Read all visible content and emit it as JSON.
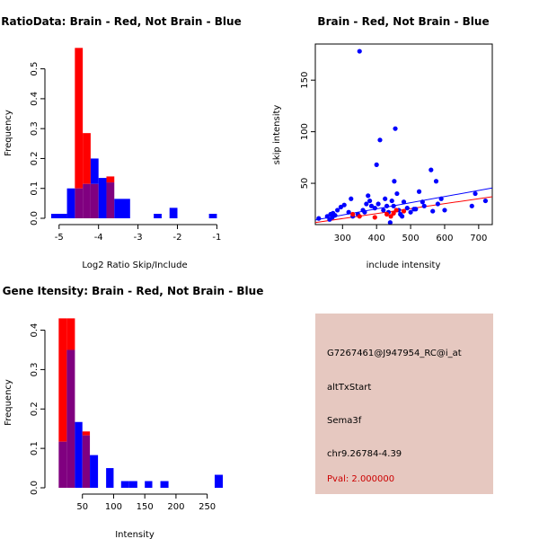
{
  "chart_data": [
    {
      "type": "histogram",
      "title": "RatioData: Brain - Red, Not Brain - Blue",
      "xlabel": "Log2 Ratio Skip/Include",
      "ylabel": "Frequency",
      "xlim": [
        -5.2,
        -0.85
      ],
      "ylim": [
        0,
        0.58
      ],
      "xticks": [
        -5,
        -4,
        -3,
        -2,
        -1
      ],
      "yticks": [
        0,
        0.1,
        0.2,
        0.3,
        0.4,
        0.5
      ],
      "xtick_labels": [
        "-5",
        "-4",
        "-3",
        "-2",
        "-1"
      ],
      "ytick_labels": [
        "0.0",
        "0.1",
        "0.2",
        "0.3",
        "0.4",
        "0.5"
      ],
      "series": [
        {
          "name": "Brain",
          "color": "#ff0000",
          "bins": [
            [
              -4.6,
              -4.4,
              0.57
            ],
            [
              -4.4,
              -4.2,
              0.285
            ],
            [
              -4.2,
              -4.0,
              0.115
            ],
            [
              -3.8,
              -3.6,
              0.14
            ]
          ]
        },
        {
          "name": "Not Brain",
          "color": "#0000ff",
          "bins": [
            [
              -5.2,
              -4.8,
              0.015
            ],
            [
              -4.8,
              -4.6,
              0.1
            ],
            [
              -4.6,
              -4.4,
              0.1
            ],
            [
              -4.4,
              -4.2,
              0.115
            ],
            [
              -4.2,
              -4.0,
              0.2
            ],
            [
              -4.0,
              -3.8,
              0.135
            ],
            [
              -3.8,
              -3.6,
              0.12
            ],
            [
              -3.6,
              -3.2,
              0.065
            ],
            [
              -2.6,
              -2.4,
              0.015
            ],
            [
              -2.2,
              -2.0,
              0.035
            ],
            [
              -1.2,
              -1.0,
              0.015
            ]
          ]
        }
      ]
    },
    {
      "type": "scatter",
      "title": "Brain - Red, Not Brain - Blue",
      "xlabel": "include intensity",
      "ylabel": "skip intensity",
      "xlim": [
        220,
        740
      ],
      "ylim": [
        10,
        185
      ],
      "xticks": [
        300,
        400,
        500,
        600,
        700
      ],
      "yticks": [
        50,
        100,
        150
      ],
      "xtick_labels": [
        "300",
        "400",
        "500",
        "600",
        "700"
      ],
      "ytick_labels": [
        "50",
        "100",
        "150"
      ],
      "series": [
        {
          "name": "Not Brain",
          "color": "#0000ff",
          "points": [
            [
              230,
              16
            ],
            [
              255,
              18
            ],
            [
              262,
              15
            ],
            [
              265,
              20
            ],
            [
              270,
              17
            ],
            [
              272,
              21
            ],
            [
              278,
              19
            ],
            [
              285,
              24
            ],
            [
              295,
              27
            ],
            [
              305,
              29
            ],
            [
              318,
              22
            ],
            [
              325,
              35
            ],
            [
              330,
              18
            ],
            [
              345,
              20
            ],
            [
              350,
              178
            ],
            [
              360,
              24
            ],
            [
              365,
              22
            ],
            [
              370,
              30
            ],
            [
              375,
              38
            ],
            [
              380,
              33
            ],
            [
              385,
              28
            ],
            [
              395,
              26
            ],
            [
              400,
              68
            ],
            [
              405,
              30
            ],
            [
              410,
              92
            ],
            [
              420,
              24
            ],
            [
              425,
              35
            ],
            [
              430,
              28
            ],
            [
              435,
              22
            ],
            [
              440,
              12
            ],
            [
              445,
              33
            ],
            [
              450,
              28
            ],
            [
              452,
              52
            ],
            [
              455,
              103
            ],
            [
              460,
              40
            ],
            [
              465,
              24
            ],
            [
              470,
              20
            ],
            [
              475,
              18
            ],
            [
              480,
              32
            ],
            [
              490,
              26
            ],
            [
              500,
              22
            ],
            [
              510,
              25
            ],
            [
              515,
              25
            ],
            [
              525,
              42
            ],
            [
              535,
              32
            ],
            [
              540,
              28
            ],
            [
              560,
              63
            ],
            [
              565,
              23
            ],
            [
              575,
              52
            ],
            [
              580,
              30
            ],
            [
              590,
              35
            ],
            [
              600,
              24
            ],
            [
              680,
              28
            ],
            [
              690,
              40
            ],
            [
              720,
              33
            ]
          ]
        },
        {
          "name": "Brain",
          "color": "#ff0000",
          "points": [
            [
              330,
              20
            ],
            [
              350,
              18
            ],
            [
              395,
              17
            ],
            [
              430,
              20
            ],
            [
              442,
              18
            ],
            [
              450,
              21
            ],
            [
              458,
              24
            ],
            [
              480,
              23
            ]
          ]
        }
      ],
      "fit_lines": [
        {
          "name": "Not Brain fit",
          "color": "#0000ff",
          "points": [
            [
              220,
              14.5
            ],
            [
              740,
              45.5
            ]
          ]
        },
        {
          "name": "Brain fit",
          "color": "#ff0000",
          "points": [
            [
              220,
              12
            ],
            [
              740,
              37
            ]
          ]
        }
      ]
    },
    {
      "type": "histogram",
      "title": "Gene Itensity: Brain - Red, Not Brain - Blue",
      "xlabel": "Intensity",
      "ylabel": "Frequency",
      "xlim": [
        0,
        275
      ],
      "ylim": [
        0,
        0.44
      ],
      "xticks": [
        50,
        100,
        150,
        200,
        250
      ],
      "yticks": [
        0,
        0.1,
        0.2,
        0.3,
        0.4
      ],
      "xtick_labels": [
        "50",
        "100",
        "150",
        "200",
        "250"
      ],
      "ytick_labels": [
        "0.0",
        "0.1",
        "0.2",
        "0.3",
        "0.4"
      ],
      "series": [
        {
          "name": "Brain",
          "color": "#ff0000",
          "bins": [
            [
              12,
              25,
              0.43
            ],
            [
              25,
              38,
              0.43
            ],
            [
              38,
              50,
              0.0
            ],
            [
              50,
              62,
              0.143
            ]
          ]
        },
        {
          "name": "Not Brain",
          "color": "#0000ff",
          "bins": [
            [
              12,
              25,
              0.117
            ],
            [
              25,
              38,
              0.35
            ],
            [
              38,
              50,
              0.167
            ],
            [
              50,
              62,
              0.133
            ],
            [
              62,
              75,
              0.083
            ],
            [
              88,
              100,
              0.05
            ],
            [
              112,
              125,
              0.017
            ],
            [
              125,
              138,
              0.017
            ],
            [
              150,
              162,
              0.017
            ],
            [
              175,
              188,
              0.017
            ],
            [
              262,
              275,
              0.033
            ]
          ]
        }
      ]
    }
  ],
  "info_panel": {
    "probe_id": "G7267461@J947954_RC@i_at",
    "event_type": "altTxStart",
    "gene": "Sema3f",
    "location": "chr9.26784-4.39",
    "pval": "Pval: 2.000000",
    "background_color": "#e6c8c0",
    "pval_color": "#cc0000"
  }
}
